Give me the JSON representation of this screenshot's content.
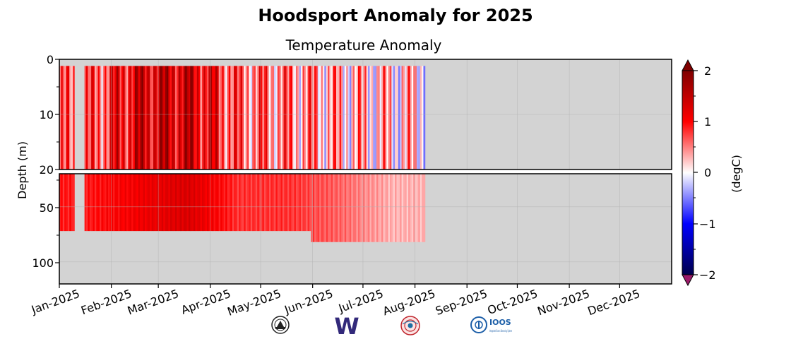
{
  "chart_data": {
    "type": "heatmap",
    "title": "Hoodsport Anomaly for 2025",
    "subtitle": "Temperature Anomaly",
    "ylabel": "Depth (m)",
    "xlabel": "",
    "x_tick_labels": [
      "Jan-2025",
      "Feb-2025",
      "Mar-2025",
      "Apr-2025",
      "May-2025",
      "Jun-2025",
      "Jul-2025",
      "Aug-2025",
      "Sep-2025",
      "Oct-2025",
      "Nov-2025",
      "Dec-2025"
    ],
    "x_range": [
      "2025-01-01",
      "2025-12-31"
    ],
    "upper_panel": {
      "y_range": [
        0,
        20
      ],
      "y_ticks": [
        "0",
        "10",
        "20"
      ]
    },
    "lower_panel": {
      "y_range": [
        20,
        120
      ],
      "y_ticks": [
        "50",
        "100"
      ]
    },
    "y_inverted": true,
    "data_extent": {
      "start": "2025-01-01",
      "end": "2025-08-07"
    },
    "data_gap": {
      "start": "2025-01-10",
      "end": "2025-01-16"
    },
    "colorbar": {
      "label": "(degC)",
      "range": [
        -2,
        2
      ],
      "tick_labels": [
        "2",
        "1",
        "0",
        "−1",
        "−2"
      ],
      "colormap": "seismic",
      "extend": "both",
      "over_color": "#800000",
      "under_color": "#9c1a6a"
    },
    "background_color": "#d3d3d3",
    "grid": true,
    "anomaly_summary": {
      "upper_0_20m": [
        {
          "month": "Jan-2025",
          "anomaly": 0.5
        },
        {
          "month": "Feb-2025",
          "anomaly": 1.3
        },
        {
          "month": "Mar-2025",
          "anomaly": 1.4
        },
        {
          "month": "Apr-2025",
          "anomaly": 0.6
        },
        {
          "month": "May-2025",
          "anomaly": 0.5
        },
        {
          "month": "Jun-2025",
          "anomaly": 0.3
        },
        {
          "month": "Jul-2025",
          "anomaly": 0.2
        }
      ],
      "lower_20_120m": [
        {
          "month": "Jan-2025",
          "anomaly": 0.9
        },
        {
          "month": "Feb-2025",
          "anomaly": 1.1
        },
        {
          "month": "Mar-2025",
          "anomaly": 1.3
        },
        {
          "month": "Apr-2025",
          "anomaly": 0.8
        },
        {
          "month": "May-2025",
          "anomaly": 0.8
        },
        {
          "month": "Jun-2025",
          "anomaly": 0.6
        },
        {
          "month": "Jul-2025",
          "anomaly": 0.3
        }
      ]
    }
  },
  "logos": [
    {
      "name": "noaa-seal-logo"
    },
    {
      "name": "uw-w-logo",
      "text": "W"
    },
    {
      "name": "nanoos-logo"
    },
    {
      "name": "ioos-logo",
      "text": "IOOS",
      "subtext": "Integrated Ocean Observing System"
    }
  ]
}
